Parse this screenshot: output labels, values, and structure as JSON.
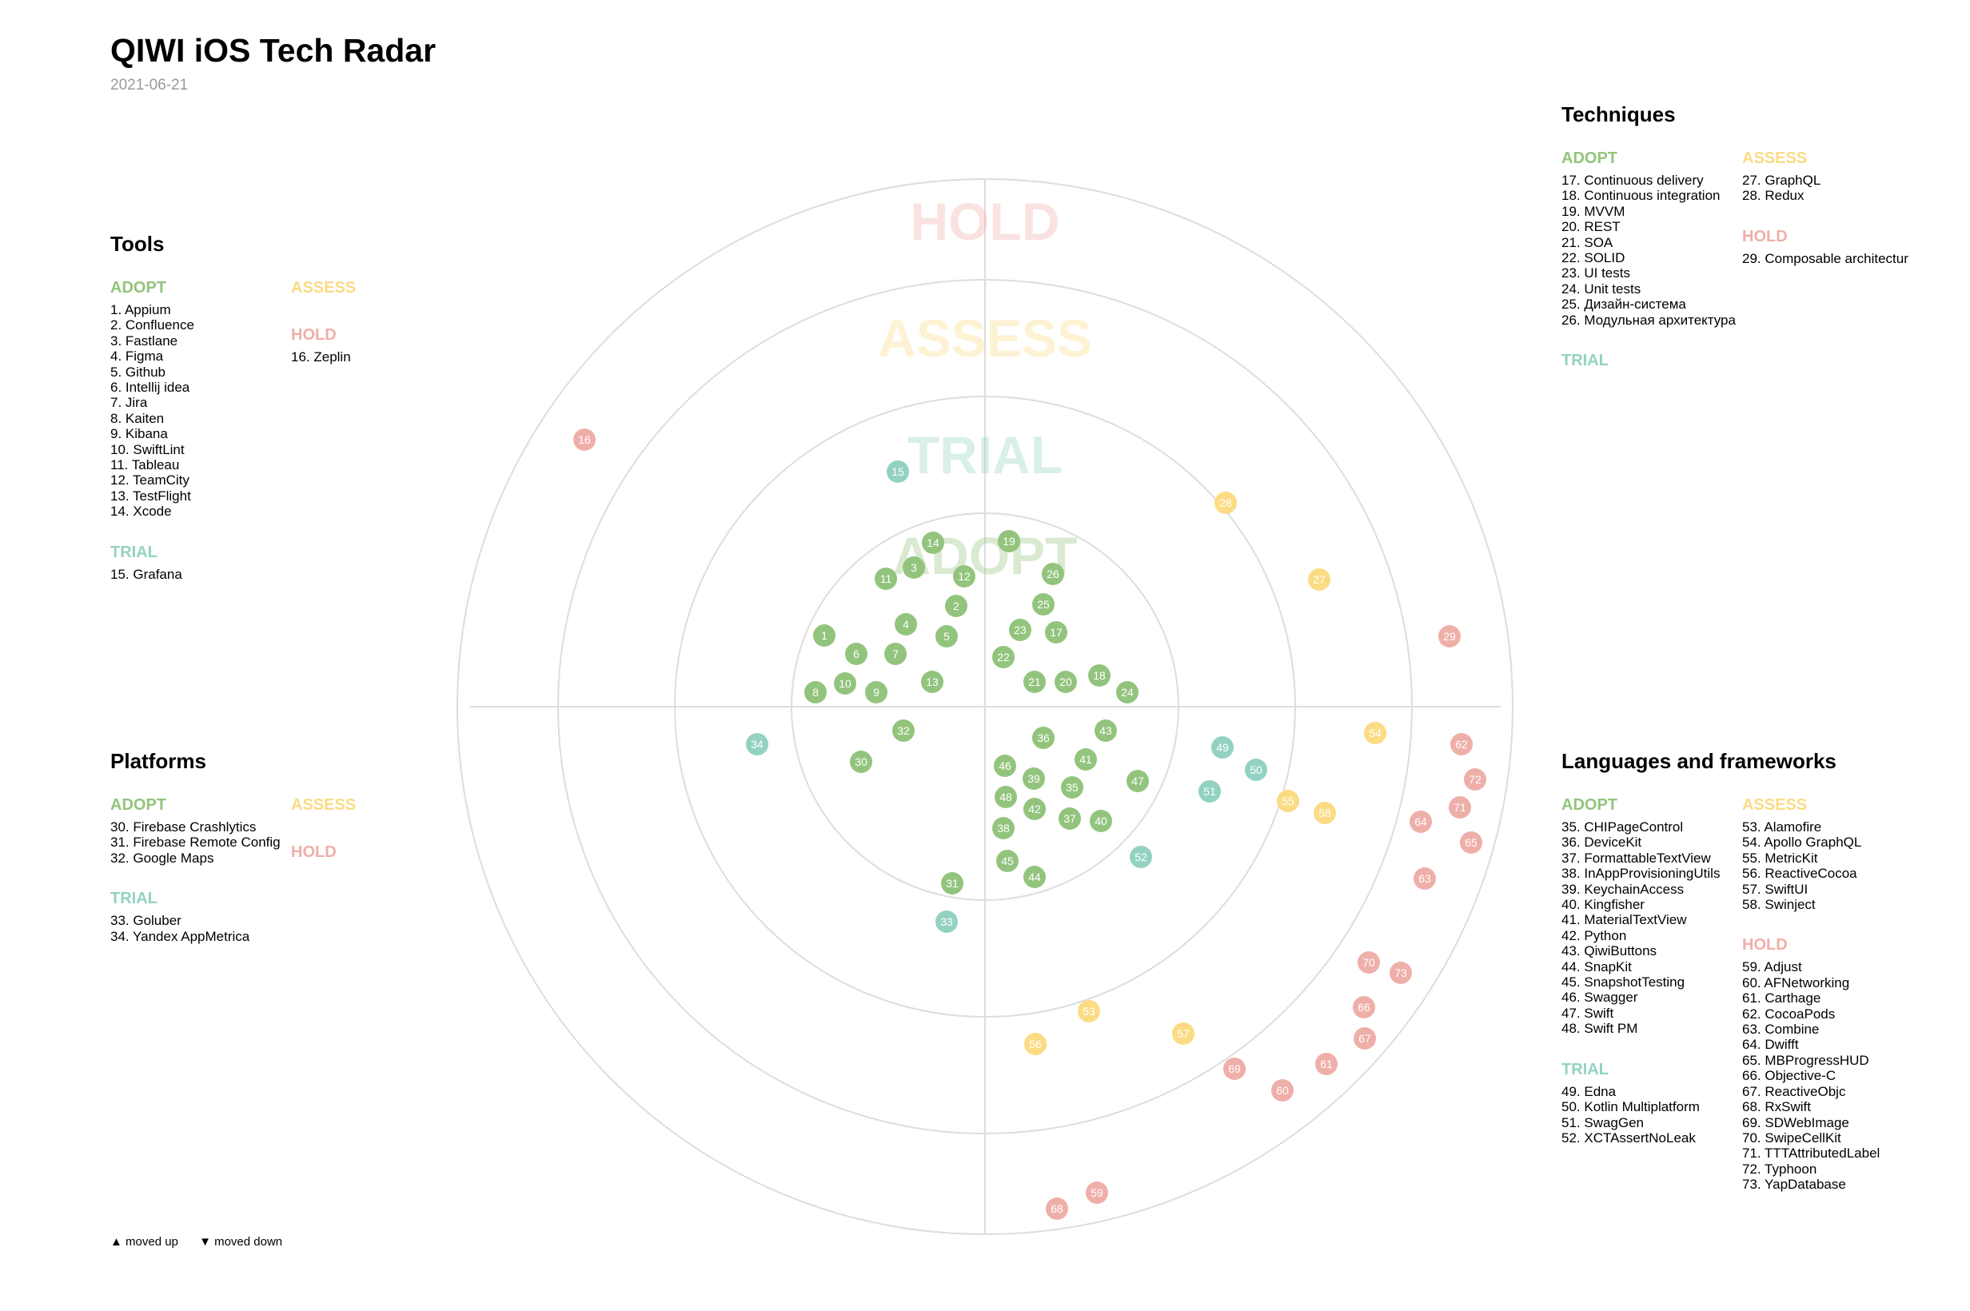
{
  "title": "QIWI iOS Tech Radar",
  "date": "2021-06-21",
  "colors": {
    "adopt": "#93c47d",
    "trial": "#93d2c2",
    "assess": "#fbdb84",
    "hold": "#efafa9",
    "grid": "#dddddd"
  },
  "ring_labels": [
    "ADOPT",
    "TRIAL",
    "ASSESS",
    "HOLD"
  ],
  "quadrants": {
    "techniques": {
      "name": "Techniques",
      "adopt_label": "ADOPT",
      "trial_label": "TRIAL",
      "assess_label": "ASSESS",
      "hold_label": "HOLD",
      "adopt": [
        "17. Continuous delivery",
        "18. Continuous integration",
        "19. MVVM",
        "20. REST",
        "21. SOA",
        "22. SOLID",
        "23. UI tests",
        "24. Unit tests",
        "25. Дизайн-система",
        "26. Модульная архитектура"
      ],
      "trial": [],
      "assess": [
        "27. GraphQL",
        "28. Redux"
      ],
      "hold": [
        "29. Composable architectur"
      ]
    },
    "tools": {
      "name": "Tools",
      "adopt_label": "ADOPT",
      "trial_label": "TRIAL",
      "assess_label": "ASSESS",
      "hold_label": "HOLD",
      "adopt": [
        "1. Appium",
        "2. Confluence",
        "3. Fastlane",
        "4. Figma",
        "5. Github",
        "6. Intellij idea",
        "7. Jira",
        "8. Kaiten",
        "9. Kibana",
        "10. SwiftLint",
        "11. Tableau",
        "12. TeamCity",
        "13. TestFlight",
        "14. Xcode"
      ],
      "trial": [
        "15. Grafana"
      ],
      "assess": [],
      "hold": [
        "16. Zeplin"
      ]
    },
    "platforms": {
      "name": "Platforms",
      "adopt_label": "ADOPT",
      "trial_label": "TRIAL",
      "assess_label": "ASSESS",
      "hold_label": "HOLD",
      "adopt": [
        "30. Firebase Crashlytics",
        "31. Firebase Remote Config",
        "32. Google Maps"
      ],
      "trial": [
        "33. Goluber",
        "34. Yandex AppMetrica"
      ],
      "assess": [],
      "hold": []
    },
    "languages": {
      "name": "Languages and frameworks",
      "adopt_label": "ADOPT",
      "trial_label": "TRIAL",
      "assess_label": "ASSESS",
      "hold_label": "HOLD",
      "adopt": [
        "35. CHIPageControl",
        "36. DeviceKit",
        "37. FormattableTextView",
        "38. InAppProvisioningUtils",
        "39. KeychainAccess",
        "40. Kingfisher",
        "41. MaterialTextView",
        "42. Python",
        "43. QiwiButtons",
        "44. SnapKit",
        "45. SnapshotTesting",
        "46. Swagger",
        "47. Swift",
        "48. Swift PM"
      ],
      "trial": [
        "49. Edna",
        "50. Kotlin Multiplatform",
        "51. SwagGen",
        "52. XCTAssertNoLeak"
      ],
      "assess": [
        "53. Alamofire",
        "54. Apollo GraphQL",
        "55. MetricKit",
        "56. ReactiveCocoa",
        "57. SwiftUI",
        "58. Swinject"
      ],
      "hold": [
        "59. Adjust",
        "60. AFNetworking",
        "61. Carthage",
        "62. CocoaPods",
        "63. Combine",
        "64. Dwifft",
        "65. MBProgressHUD",
        "66. Objective-C",
        "67. ReactiveObjc",
        "68. RxSwift",
        "69. SDWebImage",
        "70. SwipeCellKit",
        "71. TTTAttributedLabel",
        "72. Typhoon",
        "73. YapDatabase"
      ]
    }
  },
  "legend": {
    "moved_up": "▲ moved up",
    "moved_down": "▼ moved down"
  },
  "blips": [
    {
      "id": "1",
      "ring": "adopt"
    },
    {
      "id": "2",
      "ring": "adopt"
    },
    {
      "id": "3",
      "ring": "adopt"
    },
    {
      "id": "4",
      "ring": "adopt"
    },
    {
      "id": "5",
      "ring": "adopt"
    },
    {
      "id": "6",
      "ring": "adopt"
    },
    {
      "id": "7",
      "ring": "adopt"
    },
    {
      "id": "8",
      "ring": "adopt"
    },
    {
      "id": "9",
      "ring": "adopt"
    },
    {
      "id": "10",
      "ring": "adopt"
    },
    {
      "id": "11",
      "ring": "adopt"
    },
    {
      "id": "12",
      "ring": "adopt"
    },
    {
      "id": "13",
      "ring": "adopt"
    },
    {
      "id": "14",
      "ring": "adopt"
    },
    {
      "id": "15",
      "ring": "trial"
    },
    {
      "id": "16",
      "ring": "hold"
    },
    {
      "id": "17",
      "ring": "adopt"
    },
    {
      "id": "18",
      "ring": "adopt"
    },
    {
      "id": "19",
      "ring": "adopt"
    },
    {
      "id": "20",
      "ring": "adopt"
    },
    {
      "id": "21",
      "ring": "adopt"
    },
    {
      "id": "22",
      "ring": "adopt"
    },
    {
      "id": "23",
      "ring": "adopt"
    },
    {
      "id": "24",
      "ring": "adopt"
    },
    {
      "id": "25",
      "ring": "adopt"
    },
    {
      "id": "26",
      "ring": "adopt"
    },
    {
      "id": "27",
      "ring": "assess"
    },
    {
      "id": "28",
      "ring": "assess"
    },
    {
      "id": "29",
      "ring": "hold"
    },
    {
      "id": "30",
      "ring": "adopt"
    },
    {
      "id": "31",
      "ring": "adopt"
    },
    {
      "id": "32",
      "ring": "adopt"
    },
    {
      "id": "33",
      "ring": "trial"
    },
    {
      "id": "34",
      "ring": "trial"
    },
    {
      "id": "35",
      "ring": "adopt"
    },
    {
      "id": "36",
      "ring": "adopt"
    },
    {
      "id": "37",
      "ring": "adopt"
    },
    {
      "id": "38",
      "ring": "adopt"
    },
    {
      "id": "39",
      "ring": "adopt"
    },
    {
      "id": "40",
      "ring": "adopt"
    },
    {
      "id": "41",
      "ring": "adopt"
    },
    {
      "id": "42",
      "ring": "adopt"
    },
    {
      "id": "43",
      "ring": "adopt"
    },
    {
      "id": "44",
      "ring": "adopt"
    },
    {
      "id": "45",
      "ring": "adopt"
    },
    {
      "id": "46",
      "ring": "adopt"
    },
    {
      "id": "47",
      "ring": "adopt"
    },
    {
      "id": "48",
      "ring": "adopt"
    },
    {
      "id": "49",
      "ring": "trial"
    },
    {
      "id": "50",
      "ring": "trial"
    },
    {
      "id": "51",
      "ring": "trial"
    },
    {
      "id": "52",
      "ring": "trial"
    },
    {
      "id": "53",
      "ring": "assess"
    },
    {
      "id": "54",
      "ring": "assess"
    },
    {
      "id": "55",
      "ring": "assess"
    },
    {
      "id": "56",
      "ring": "assess"
    },
    {
      "id": "57",
      "ring": "assess"
    },
    {
      "id": "58",
      "ring": "assess"
    },
    {
      "id": "59",
      "ring": "hold"
    },
    {
      "id": "60",
      "ring": "hold"
    },
    {
      "id": "61",
      "ring": "hold"
    },
    {
      "id": "62",
      "ring": "hold"
    },
    {
      "id": "63",
      "ring": "hold"
    },
    {
      "id": "64",
      "ring": "hold"
    },
    {
      "id": "65",
      "ring": "hold"
    },
    {
      "id": "66",
      "ring": "hold"
    },
    {
      "id": "67",
      "ring": "hold"
    },
    {
      "id": "68",
      "ring": "hold"
    },
    {
      "id": "69",
      "ring": "hold"
    },
    {
      "id": "70",
      "ring": "hold"
    },
    {
      "id": "71",
      "ring": "hold"
    },
    {
      "id": "72",
      "ring": "hold"
    },
    {
      "id": "73",
      "ring": "hold"
    }
  ]
}
